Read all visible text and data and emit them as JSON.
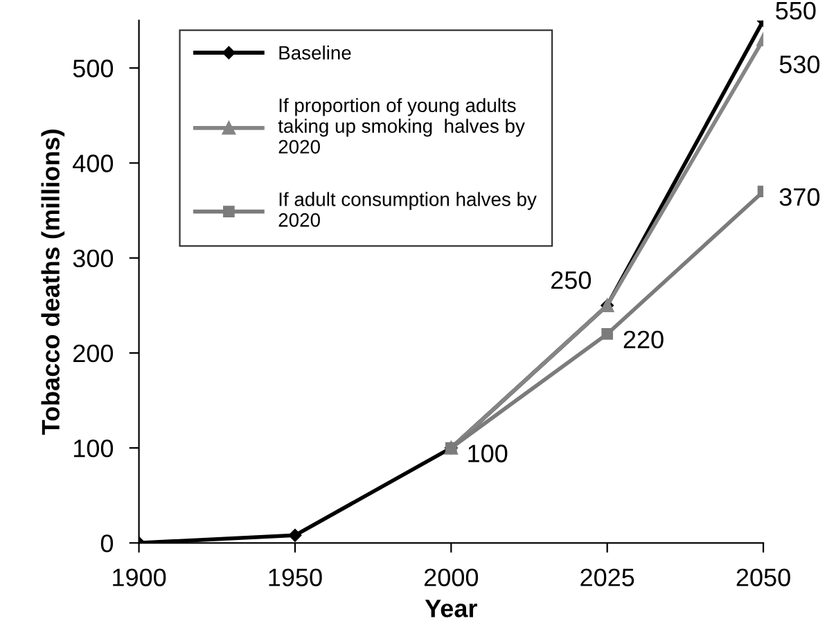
{
  "chart_data": {
    "type": "line",
    "xlabel": "Year",
    "ylabel": "Tobacco deaths (millions)",
    "categories": [
      "1900",
      "1950",
      "2000",
      "2025",
      "2050"
    ],
    "series": [
      {
        "name": "Baseline",
        "color": "#000000",
        "marker": "diamond",
        "values": [
          0,
          8,
          100,
          250,
          550
        ],
        "value_labels": [
          null,
          null,
          null,
          "250",
          "550"
        ]
      },
      {
        "name": "If proportion of young adults taking up smoking  halves by 2020",
        "color": "#858585",
        "marker": "triangle",
        "values": [
          null,
          null,
          100,
          250,
          530
        ],
        "value_labels": [
          null,
          null,
          null,
          null,
          "530"
        ]
      },
      {
        "name": "If adult consumption halves by 2020",
        "color": "#7b7b7b",
        "marker": "square",
        "values": [
          null,
          null,
          100,
          220,
          370
        ],
        "value_labels": [
          null,
          null,
          "100",
          "220",
          "370"
        ]
      }
    ],
    "ylim": [
      0,
      550
    ],
    "yticks": [
      0,
      100,
      200,
      300,
      400,
      500
    ],
    "grid": false,
    "legend": "top left"
  }
}
